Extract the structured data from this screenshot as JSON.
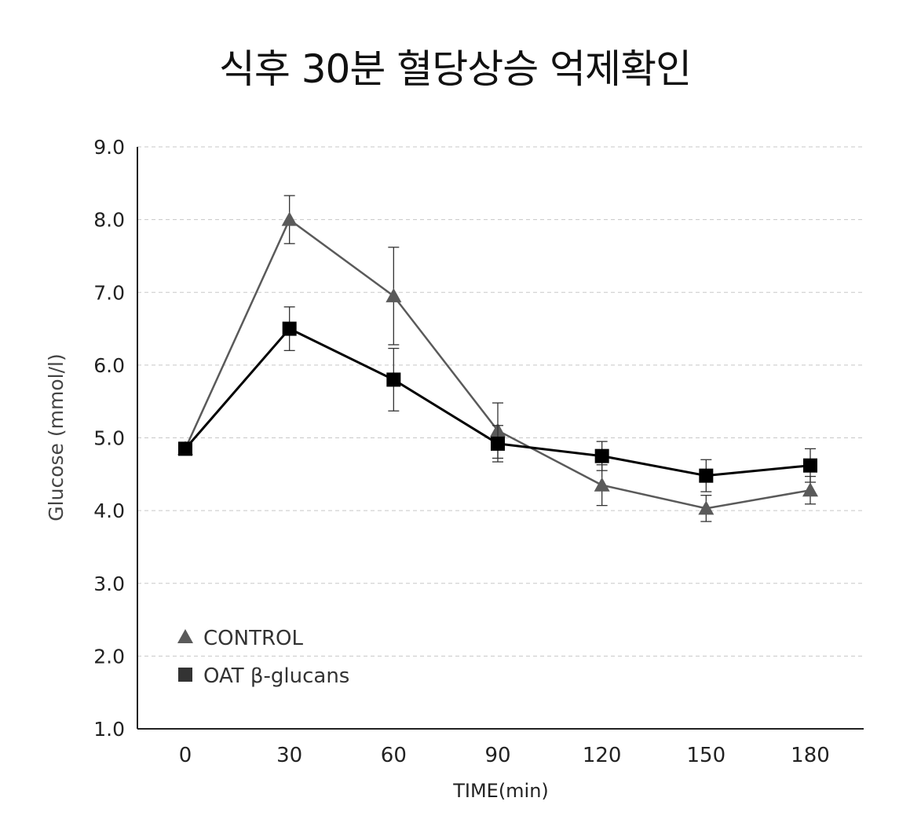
{
  "chart_data": {
    "type": "line",
    "title": "식후 30분 혈당상승 억제확인",
    "xlabel": "TIME(min)",
    "ylabel": "Glucose (mmol/l)",
    "x": [
      0,
      30,
      60,
      90,
      120,
      150,
      180
    ],
    "x_tick_labels": [
      "0",
      "30",
      "60",
      "90",
      "120",
      "150",
      "180"
    ],
    "ylim": [
      1.0,
      9.0
    ],
    "y_tick_labels": [
      "1.0",
      "2.0",
      "3.0",
      "4.0",
      "5.0",
      "6.0",
      "7.0",
      "8.0",
      "9.0"
    ],
    "grid": true,
    "legend_position": "bottom-left",
    "series": [
      {
        "name": "CONTROL",
        "marker": "triangle",
        "color": "#5a5a5a",
        "values": [
          4.85,
          8.0,
          6.95,
          5.1,
          4.35,
          4.03,
          4.28
        ],
        "error": [
          0,
          0.33,
          0.67,
          0.38,
          0.28,
          0.18,
          0.19
        ]
      },
      {
        "name": "OAT β-glucans",
        "marker": "square",
        "color": "#000000",
        "values": [
          4.85,
          6.5,
          5.8,
          4.92,
          4.75,
          4.48,
          4.62
        ],
        "error": [
          0,
          0.3,
          0.43,
          0.25,
          0.2,
          0.22,
          0.23
        ]
      }
    ]
  }
}
